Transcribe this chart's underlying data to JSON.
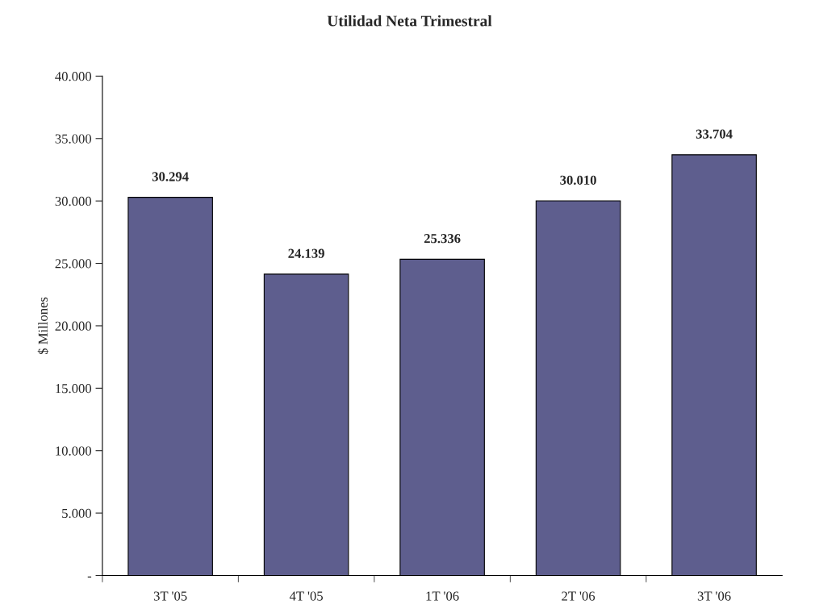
{
  "chart_data": {
    "type": "bar",
    "title": "Utilidad Neta Trimestral",
    "ylabel": "$ Millones",
    "categories": [
      "3T '05",
      "4T '05",
      "1T '06",
      "2T '06",
      "3T '06"
    ],
    "values": [
      30294,
      24139,
      25336,
      30010,
      33704
    ],
    "value_labels": [
      "30.294",
      "24.139",
      "25.336",
      "30.010",
      "33.704"
    ],
    "color": "#5e5e8e",
    "ylim": [
      0,
      40000
    ],
    "yticks": [
      {
        "value": 0,
        "label": "-"
      },
      {
        "value": 5000,
        "label": "5.000"
      },
      {
        "value": 10000,
        "label": "10.000"
      },
      {
        "value": 15000,
        "label": "15.000"
      },
      {
        "value": 20000,
        "label": "20.000"
      },
      {
        "value": 25000,
        "label": "25.000"
      },
      {
        "value": 30000,
        "label": "30.000"
      },
      {
        "value": 35000,
        "label": "35.000"
      },
      {
        "value": 40000,
        "label": "40.000"
      }
    ],
    "grid": false,
    "legend": false
  }
}
